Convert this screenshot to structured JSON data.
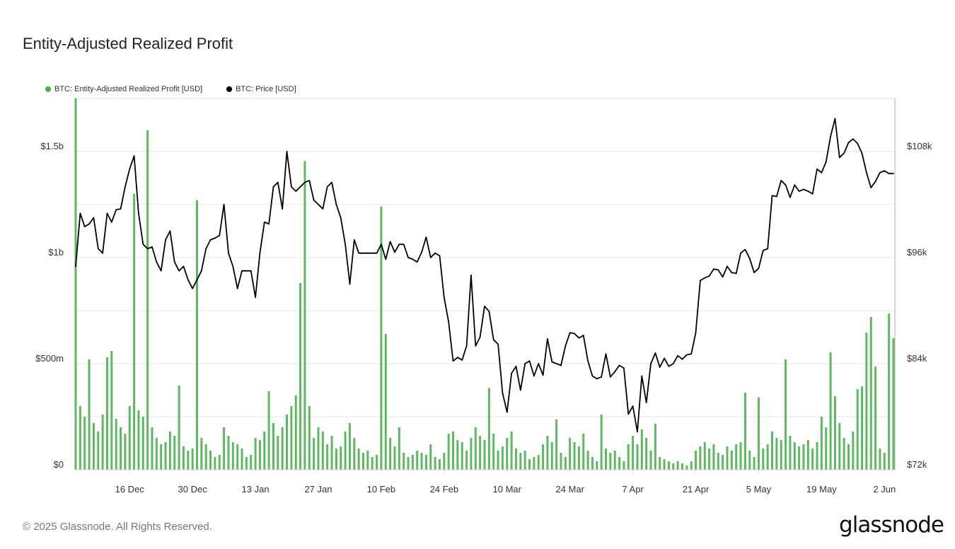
{
  "title": "Entity-Adjusted Realized Profit",
  "footer": "© 2025 Glassnode. All Rights Reserved.",
  "logo": "glassnode",
  "chart_data": {
    "type": "bar+line",
    "title": "Entity-Adjusted Realized Profit",
    "legend_position": "top-left",
    "grid": true,
    "x_ticks": [
      {
        "label": "16 Dec",
        "date": "2024-12-16"
      },
      {
        "label": "30 Dec",
        "date": "2024-12-30"
      },
      {
        "label": "13 Jan",
        "date": "2025-01-13"
      },
      {
        "label": "27 Jan",
        "date": "2025-01-27"
      },
      {
        "label": "10 Feb",
        "date": "2025-02-10"
      },
      {
        "label": "24 Feb",
        "date": "2025-02-24"
      },
      {
        "label": "10 Mar",
        "date": "2025-03-10"
      },
      {
        "label": "24 Mar",
        "date": "2025-03-24"
      },
      {
        "label": "7 Apr",
        "date": "2025-04-07"
      },
      {
        "label": "21 Apr",
        "date": "2025-04-21"
      },
      {
        "label": "5 May",
        "date": "2025-05-05"
      },
      {
        "label": "19 May",
        "date": "2025-05-19"
      },
      {
        "label": "2 Jun",
        "date": "2025-06-02"
      }
    ],
    "xlim": [
      "2024-12-04",
      "2025-06-04"
    ],
    "y_left": {
      "ylim": [
        0,
        1750
      ],
      "unit": "USD millions",
      "ticks": [
        {
          "v": 0,
          "label": "$0"
        },
        {
          "v": 500,
          "label": "$500m"
        },
        {
          "v": 1000,
          "label": "$1b"
        },
        {
          "v": 1500,
          "label": "$1.5b"
        }
      ],
      "gridlines": [
        0,
        250,
        500,
        750,
        1000,
        1250,
        1500,
        1750
      ]
    },
    "y_right": {
      "ylim": [
        72,
        114
      ],
      "unit": "USD thousands",
      "ticks": [
        {
          "v": 72,
          "label": "$72k"
        },
        {
          "v": 84,
          "label": "$84k"
        },
        {
          "v": 96,
          "label": "$96k"
        },
        {
          "v": 108,
          "label": "$108k"
        }
      ]
    },
    "x": [
      "2024-12-04",
      "2024-12-05",
      "2024-12-06",
      "2024-12-07",
      "2024-12-08",
      "2024-12-09",
      "2024-12-10",
      "2024-12-11",
      "2024-12-12",
      "2024-12-13",
      "2024-12-14",
      "2024-12-15",
      "2024-12-16",
      "2024-12-17",
      "2024-12-18",
      "2024-12-19",
      "2024-12-20",
      "2024-12-21",
      "2024-12-22",
      "2024-12-23",
      "2024-12-24",
      "2024-12-25",
      "2024-12-26",
      "2024-12-27",
      "2024-12-28",
      "2024-12-29",
      "2024-12-30",
      "2024-12-31",
      "2025-01-01",
      "2025-01-02",
      "2025-01-03",
      "2025-01-04",
      "2025-01-05",
      "2025-01-06",
      "2025-01-07",
      "2025-01-08",
      "2025-01-09",
      "2025-01-10",
      "2025-01-11",
      "2025-01-12",
      "2025-01-13",
      "2025-01-14",
      "2025-01-15",
      "2025-01-16",
      "2025-01-17",
      "2025-01-18",
      "2025-01-19",
      "2025-01-20",
      "2025-01-21",
      "2025-01-22",
      "2025-01-23",
      "2025-01-24",
      "2025-01-25",
      "2025-01-26",
      "2025-01-27",
      "2025-01-28",
      "2025-01-29",
      "2025-01-30",
      "2025-01-31",
      "2025-02-01",
      "2025-02-02",
      "2025-02-03",
      "2025-02-04",
      "2025-02-05",
      "2025-02-06",
      "2025-02-07",
      "2025-02-08",
      "2025-02-09",
      "2025-02-10",
      "2025-02-11",
      "2025-02-12",
      "2025-02-13",
      "2025-02-14",
      "2025-02-15",
      "2025-02-16",
      "2025-02-17",
      "2025-02-18",
      "2025-02-19",
      "2025-02-20",
      "2025-02-21",
      "2025-02-22",
      "2025-02-23",
      "2025-02-24",
      "2025-02-25",
      "2025-02-26",
      "2025-02-27",
      "2025-02-28",
      "2025-03-01",
      "2025-03-02",
      "2025-03-03",
      "2025-03-04",
      "2025-03-05",
      "2025-03-06",
      "2025-03-07",
      "2025-03-08",
      "2025-03-09",
      "2025-03-10",
      "2025-03-11",
      "2025-03-12",
      "2025-03-13",
      "2025-03-14",
      "2025-03-15",
      "2025-03-16",
      "2025-03-17",
      "2025-03-18",
      "2025-03-19",
      "2025-03-20",
      "2025-03-21",
      "2025-03-22",
      "2025-03-23",
      "2025-03-24",
      "2025-03-25",
      "2025-03-26",
      "2025-03-27",
      "2025-03-28",
      "2025-03-29",
      "2025-03-30",
      "2025-03-31",
      "2025-04-01",
      "2025-04-02",
      "2025-04-03",
      "2025-04-04",
      "2025-04-05",
      "2025-04-06",
      "2025-04-07",
      "2025-04-08",
      "2025-04-09",
      "2025-04-10",
      "2025-04-11",
      "2025-04-12",
      "2025-04-13",
      "2025-04-14",
      "2025-04-15",
      "2025-04-16",
      "2025-04-17",
      "2025-04-18",
      "2025-04-19",
      "2025-04-20",
      "2025-04-21",
      "2025-04-22",
      "2025-04-23",
      "2025-04-24",
      "2025-04-25",
      "2025-04-26",
      "2025-04-27",
      "2025-04-28",
      "2025-04-29",
      "2025-04-30",
      "2025-05-01",
      "2025-05-02",
      "2025-05-03",
      "2025-05-04",
      "2025-05-05",
      "2025-05-06",
      "2025-05-07",
      "2025-05-08",
      "2025-05-09",
      "2025-05-10",
      "2025-05-11",
      "2025-05-12",
      "2025-05-13",
      "2025-05-14",
      "2025-05-15",
      "2025-05-16",
      "2025-05-17",
      "2025-05-18",
      "2025-05-19",
      "2025-05-20",
      "2025-05-21",
      "2025-05-22",
      "2025-05-23",
      "2025-05-24",
      "2025-05-25",
      "2025-05-26",
      "2025-05-27",
      "2025-05-28",
      "2025-05-29",
      "2025-05-30",
      "2025-05-31",
      "2025-06-01",
      "2025-06-02",
      "2025-06-03",
      "2025-06-04"
    ],
    "series": [
      {
        "name": "BTC: Entity-Adjusted Realized Profit [USD]",
        "type": "bar",
        "axis": "left",
        "color": "#4caf50",
        "values": [
          1750,
          300,
          250,
          520,
          220,
          180,
          260,
          530,
          560,
          240,
          200,
          170,
          300,
          1300,
          280,
          250,
          1600,
          200,
          150,
          120,
          130,
          180,
          160,
          397,
          110,
          90,
          100,
          1270,
          150,
          120,
          90,
          60,
          70,
          200,
          160,
          130,
          120,
          100,
          60,
          70,
          150,
          140,
          180,
          370,
          220,
          160,
          200,
          260,
          300,
          350,
          880,
          1455,
          300,
          150,
          200,
          180,
          120,
          160,
          100,
          110,
          180,
          220,
          150,
          100,
          80,
          90,
          60,
          70,
          1240,
          640,
          150,
          110,
          200,
          80,
          60,
          70,
          90,
          80,
          70,
          120,
          60,
          50,
          80,
          170,
          180,
          140,
          130,
          90,
          150,
          200,
          160,
          140,
          385,
          170,
          90,
          110,
          150,
          180,
          100,
          80,
          90,
          50,
          60,
          70,
          120,
          160,
          130,
          237,
          80,
          60,
          150,
          130,
          110,
          170,
          90,
          60,
          40,
          260,
          100,
          80,
          90,
          60,
          40,
          120,
          160,
          120,
          190,
          150,
          90,
          217,
          60,
          50,
          40,
          30,
          40,
          30,
          20,
          40,
          90,
          110,
          130,
          100,
          120,
          80,
          70,
          110,
          90,
          120,
          130,
          363,
          90,
          60,
          340,
          100,
          120,
          180,
          150,
          140,
          520,
          160,
          130,
          110,
          120,
          140,
          100,
          130,
          250,
          200,
          553,
          347,
          220,
          150,
          120,
          180,
          380,
          393,
          646,
          720,
          486,
          100,
          80,
          736,
          620
        ]
      },
      {
        "name": "BTC: Price [USD]",
        "type": "line",
        "axis": "right",
        "color": "#000000",
        "values": [
          95,
          101,
          99.5,
          99.8,
          100.5,
          97,
          96.5,
          101,
          100,
          101.4,
          101.5,
          104,
          106,
          107.5,
          101,
          97.5,
          97,
          97.2,
          95.5,
          94.5,
          98,
          99,
          95.5,
          94.5,
          95,
          93.5,
          92.5,
          93.5,
          94.5,
          97,
          98,
          98.2,
          98.5,
          102,
          96.5,
          95,
          92.5,
          94.5,
          94.5,
          94.5,
          91.5,
          96.5,
          100,
          99.8,
          104,
          104.5,
          101.5,
          108,
          104,
          103.5,
          104,
          104.5,
          104.7,
          102.5,
          102,
          101.5,
          104,
          104.5,
          102,
          100.5,
          97.5,
          93,
          98,
          96.5,
          96.5,
          96.5,
          96.5,
          96.5,
          97.5,
          95.8,
          97.8,
          96.6,
          97.5,
          97.5,
          96,
          95.8,
          95.5,
          96.6,
          98.3,
          96,
          96.5,
          96.2,
          91.5,
          88.7,
          84.3,
          84.7,
          84.4,
          86,
          94,
          86,
          87,
          90.5,
          89.9,
          86.7,
          86.2,
          80.7,
          78.5,
          82.9,
          83.7,
          81,
          84,
          84.3,
          82.6,
          84,
          82.7,
          86.8,
          84.2,
          84,
          83.8,
          86,
          87.5,
          87.4,
          86.9,
          87.2,
          84.3,
          82.6,
          82.3,
          82.5,
          85.1,
          82.5,
          83.1,
          83.8,
          83.5,
          78.3,
          79.2,
          76.3,
          82.6,
          79.6,
          84,
          85.2,
          83.6,
          84.6,
          83.7,
          84,
          84.9,
          84.5,
          85,
          85.1,
          87.5,
          93.4,
          93.7,
          93.9,
          94.7,
          94.6,
          93.8,
          95,
          94.3,
          94.2,
          96.5,
          96.9,
          95.9,
          94.3,
          94.8,
          96.8,
          97,
          103,
          102.9,
          104.7,
          104.2,
          102.8,
          104.2,
          103.5,
          103.7,
          103.5,
          103.2,
          106,
          105.6,
          106.8,
          109.7,
          111.7,
          107.3,
          107.8,
          109,
          109.4,
          108.9,
          107.8,
          105.6,
          103.9,
          104.6,
          105.6,
          105.8,
          105.5,
          105.5
        ]
      }
    ]
  }
}
